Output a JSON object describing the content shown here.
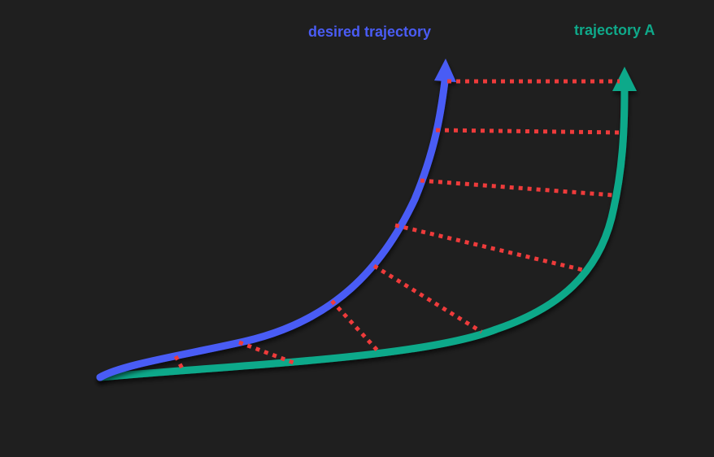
{
  "labels": {
    "desired": "desired trajectory",
    "trajectory_a": "trajectory A"
  },
  "colors": {
    "background": "#1f1f1f",
    "desired": "#4a5cf5",
    "trajectory_a": "#0fa98a",
    "connector": "#ee3b3b"
  }
}
